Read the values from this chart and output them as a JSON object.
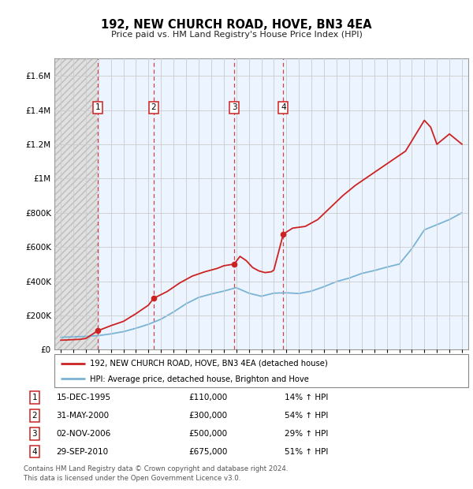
{
  "title": "192, NEW CHURCH ROAD, HOVE, BN3 4EA",
  "subtitle": "Price paid vs. HM Land Registry's House Price Index (HPI)",
  "transactions": [
    {
      "label": 1,
      "date_num": 1995.958,
      "price": 110000,
      "pct": "14% ↑ HPI",
      "date_str": "15-DEC-1995"
    },
    {
      "label": 2,
      "date_num": 2000.414,
      "price": 300000,
      "pct": "54% ↑ HPI",
      "date_str": "31-MAY-2000"
    },
    {
      "label": 3,
      "date_num": 2006.838,
      "price": 500000,
      "pct": "29% ↑ HPI",
      "date_str": "02-NOV-2006"
    },
    {
      "label": 4,
      "date_num": 2010.747,
      "price": 675000,
      "pct": "51% ↑ HPI",
      "date_str": "29-SEP-2010"
    }
  ],
  "hpi_color": "#7ab3d4",
  "price_color": "#cc2222",
  "ylim": [
    0,
    1700000
  ],
  "xlim": [
    1992.5,
    2025.5
  ],
  "yticks": [
    0,
    200000,
    400000,
    600000,
    800000,
    1000000,
    1200000,
    1400000,
    1600000
  ],
  "ytick_labels": [
    "£0",
    "£200K",
    "£400K",
    "£600K",
    "£800K",
    "£1M",
    "£1.2M",
    "£1.4M",
    "£1.6M"
  ],
  "footer": "Contains HM Land Registry data © Crown copyright and database right 2024.\nThis data is licensed under the Open Government Licence v3.0.",
  "legend_price": "192, NEW CHURCH ROAD, HOVE, BN3 4EA (detached house)",
  "legend_hpi": "HPI: Average price, detached house, Brighton and Hove",
  "hpi_years": [
    1993,
    1994,
    1995,
    1996,
    1997,
    1998,
    1999,
    2000,
    2001,
    2002,
    2003,
    2004,
    2005,
    2006,
    2007,
    2008,
    2009,
    2010,
    2011,
    2012,
    2013,
    2014,
    2015,
    2016,
    2017,
    2018,
    2019,
    2020,
    2021,
    2022,
    2023,
    2024,
    2025
  ],
  "hpi_vals": [
    72000,
    75000,
    77000,
    82000,
    92000,
    105000,
    125000,
    148000,
    178000,
    220000,
    268000,
    305000,
    325000,
    342000,
    362000,
    330000,
    312000,
    330000,
    332000,
    328000,
    342000,
    368000,
    398000,
    418000,
    445000,
    462000,
    482000,
    500000,
    590000,
    700000,
    730000,
    760000,
    800000
  ],
  "price_years": [
    1993.0,
    1994.5,
    1995.0,
    1995.958,
    1997.0,
    1998.0,
    1999.0,
    2000.0,
    2000.414,
    2001.5,
    2002.5,
    2003.5,
    2004.5,
    2005.5,
    2006.0,
    2006.838,
    2007.3,
    2007.8,
    2008.3,
    2008.8,
    2009.3,
    2009.8,
    2010.0,
    2010.747,
    2011.5,
    2012.5,
    2013.5,
    2014.5,
    2015.5,
    2016.5,
    2017.5,
    2018.5,
    2019.5,
    2020.5,
    2021.0,
    2021.5,
    2022.0,
    2022.5,
    2023.0,
    2023.5,
    2024.0,
    2025.0
  ],
  "price_vals": [
    55000,
    60000,
    65000,
    110000,
    140000,
    165000,
    210000,
    260000,
    300000,
    340000,
    390000,
    430000,
    455000,
    475000,
    490000,
    500000,
    545000,
    520000,
    480000,
    460000,
    450000,
    455000,
    465000,
    675000,
    710000,
    720000,
    760000,
    830000,
    900000,
    960000,
    1010000,
    1060000,
    1110000,
    1160000,
    1220000,
    1280000,
    1340000,
    1300000,
    1200000,
    1230000,
    1260000,
    1200000
  ]
}
